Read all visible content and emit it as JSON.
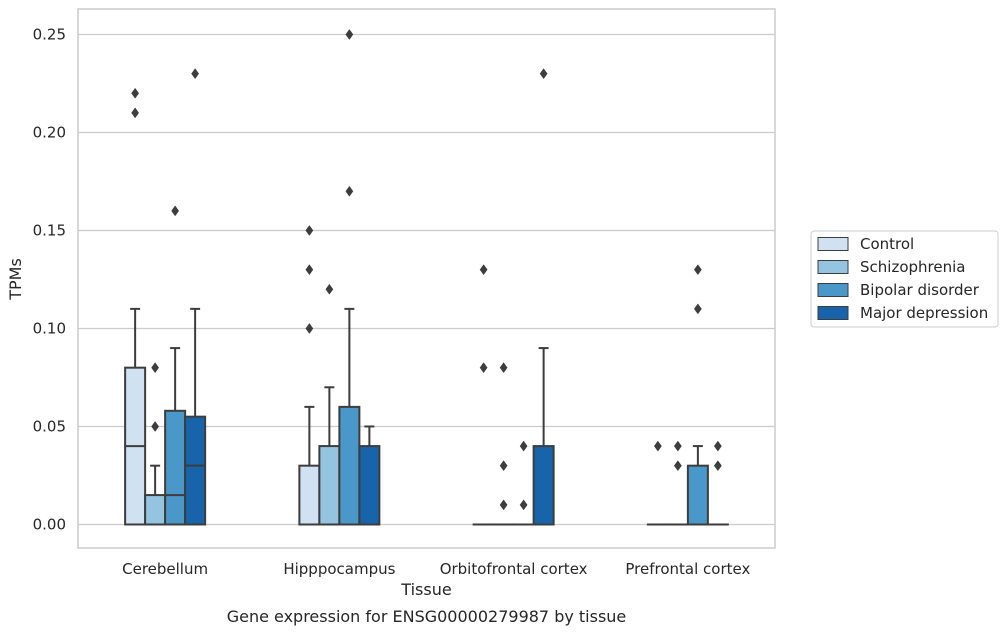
{
  "chart_data": {
    "type": "box",
    "title": "",
    "caption": "Gene expression for ENSG00000279987 by tissue",
    "xlabel": "Tissue",
    "ylabel": "TPMs",
    "ylim": [
      -0.012,
      0.263
    ],
    "yticks": [
      0.0,
      0.05,
      0.1,
      0.15,
      0.2,
      0.25
    ],
    "ytick_labels": [
      "0.00",
      "0.05",
      "0.10",
      "0.15",
      "0.20",
      "0.25"
    ],
    "grid": "horizontal",
    "legend_position": "right",
    "categories": [
      "Cerebellum",
      "Hipppocampus",
      "Orbitofrontal cortex",
      "Prefrontal cortex"
    ],
    "series": [
      {
        "name": "Control",
        "color": "#d0e1f2",
        "boxes": [
          {
            "q1": 0.0,
            "median": 0.04,
            "q3": 0.08,
            "whisker_low": 0.0,
            "whisker_high": 0.11,
            "outliers": [
              0.21,
              0.22
            ]
          },
          {
            "q1": 0.0,
            "median": 0.0,
            "q3": 0.03,
            "whisker_low": 0.0,
            "whisker_high": 0.06,
            "outliers": [
              0.1,
              0.13,
              0.15
            ]
          },
          {
            "q1": 0.0,
            "median": 0.0,
            "q3": 0.0,
            "whisker_low": 0.0,
            "whisker_high": 0.0,
            "outliers": [
              0.08,
              0.13
            ]
          },
          {
            "q1": 0.0,
            "median": 0.0,
            "q3": 0.0,
            "whisker_low": 0.0,
            "whisker_high": 0.0,
            "outliers": [
              0.04
            ]
          }
        ]
      },
      {
        "name": "Schizophrenia",
        "color": "#94c4df",
        "boxes": [
          {
            "q1": 0.0,
            "median": 0.0,
            "q3": 0.015,
            "whisker_low": 0.0,
            "whisker_high": 0.03,
            "outliers": [
              0.05,
              0.08
            ]
          },
          {
            "q1": 0.0,
            "median": 0.0,
            "q3": 0.04,
            "whisker_low": 0.0,
            "whisker_high": 0.07,
            "outliers": [
              0.12
            ]
          },
          {
            "q1": 0.0,
            "median": 0.0,
            "q3": 0.0,
            "whisker_low": 0.0,
            "whisker_high": 0.0,
            "outliers": [
              0.01,
              0.03,
              0.08
            ]
          },
          {
            "q1": 0.0,
            "median": 0.0,
            "q3": 0.0,
            "whisker_low": 0.0,
            "whisker_high": 0.0,
            "outliers": [
              0.03,
              0.04
            ]
          }
        ]
      },
      {
        "name": "Bipolar disorder",
        "color": "#4a98c9",
        "boxes": [
          {
            "q1": 0.0,
            "median": 0.015,
            "q3": 0.058,
            "whisker_low": 0.0,
            "whisker_high": 0.09,
            "outliers": [
              0.16
            ]
          },
          {
            "q1": 0.0,
            "median": 0.0,
            "q3": 0.06,
            "whisker_low": 0.0,
            "whisker_high": 0.11,
            "outliers": [
              0.17,
              0.25
            ]
          },
          {
            "q1": 0.0,
            "median": 0.0,
            "q3": 0.0,
            "whisker_low": 0.0,
            "whisker_high": 0.0,
            "outliers": [
              0.01,
              0.04
            ]
          },
          {
            "q1": 0.0,
            "median": 0.0,
            "q3": 0.03,
            "whisker_low": 0.0,
            "whisker_high": 0.04,
            "outliers": [
              0.11,
              0.13
            ]
          }
        ]
      },
      {
        "name": "Major depression",
        "color": "#1764ab",
        "boxes": [
          {
            "q1": 0.0,
            "median": 0.03,
            "q3": 0.055,
            "whisker_low": 0.0,
            "whisker_high": 0.11,
            "outliers": [
              0.23
            ]
          },
          {
            "q1": 0.0,
            "median": 0.0,
            "q3": 0.04,
            "whisker_low": 0.0,
            "whisker_high": 0.05,
            "outliers": []
          },
          {
            "q1": 0.0,
            "median": 0.0,
            "q3": 0.04,
            "whisker_low": 0.0,
            "whisker_high": 0.09,
            "outliers": [
              0.23
            ]
          },
          {
            "q1": 0.0,
            "median": 0.0,
            "q3": 0.0,
            "whisker_low": 0.0,
            "whisker_high": 0.0,
            "outliers": [
              0.03,
              0.04
            ]
          }
        ]
      }
    ]
  }
}
